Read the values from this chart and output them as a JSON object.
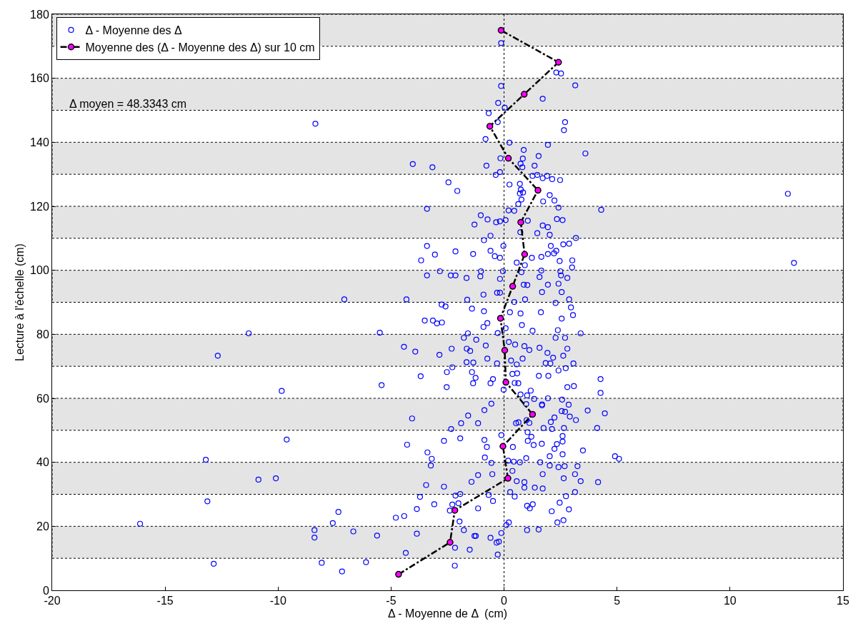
{
  "chart_data": {
    "type": "scatter",
    "xlabel": "Δ - Moyenne de Δ  (cm)",
    "ylabel": "Lecture à l'échelle (cm)",
    "xlim": [
      -20,
      15
    ],
    "xticks": [
      -20,
      -15,
      -10,
      -5,
      0,
      5,
      10,
      15
    ],
    "ylim": [
      0,
      180
    ],
    "yticks": [
      0,
      20,
      40,
      60,
      80,
      100,
      120,
      140,
      160,
      180
    ],
    "grid": false,
    "legend": "top left",
    "annotations": [
      "Δ moyen = 48.3343 cm"
    ],
    "ref_lines": [
      {
        "axis": "x",
        "value": 0,
        "color": "#000000",
        "line_style": "dotted"
      }
    ],
    "bands": [
      {
        "axis": "y",
        "from": 10,
        "to": 20,
        "color": "#e4e4e4"
      },
      {
        "axis": "y",
        "from": 30,
        "to": 40,
        "color": "#e4e4e4"
      },
      {
        "axis": "y",
        "from": 50,
        "to": 60,
        "color": "#e4e4e4"
      },
      {
        "axis": "y",
        "from": 70,
        "to": 80,
        "color": "#e4e4e4"
      },
      {
        "axis": "y",
        "from": 90,
        "to": 100,
        "color": "#e4e4e4"
      },
      {
        "axis": "y",
        "from": 110,
        "to": 120,
        "color": "#e4e4e4"
      },
      {
        "axis": "y",
        "from": 130,
        "to": 140,
        "color": "#e4e4e4"
      },
      {
        "axis": "y",
        "from": 150,
        "to": 160,
        "color": "#e4e4e4"
      },
      {
        "axis": "y",
        "from": 170,
        "to": 180,
        "color": "#e4e4e4"
      }
    ],
    "series": [
      {
        "name": "Δ - Moyenne des Δ",
        "color": "#0000ff",
        "marker": "circle",
        "x": [
          -0.13,
          2.31,
          2.52,
          -0.13,
          3.15,
          1.71,
          -0.26,
          0.03,
          -0.68,
          -0.28,
          2.7,
          2.65,
          -0.82,
          0.24,
          1.94,
          0.87,
          3.6,
          1.53,
          -4.04,
          -3.17,
          -0.16,
          0.83,
          0.73,
          0.81,
          -0.78,
          1.35,
          -0.18,
          -0.37,
          1.26,
          1.47,
          1.71,
          1.9,
          2.13,
          2.48,
          -2.46,
          -2.07,
          0.24,
          0.7,
          0.74,
          0.84,
          0.7,
          2.02,
          0.77,
          2.23,
          1.73,
          0.63,
          -3.41,
          2.41,
          4.3,
          -8.35,
          -7.07,
          -11.3,
          -5.5,
          -12.67,
          -9.84,
          -5.42,
          -9.62,
          -13.2,
          -10.87,
          -10.1,
          -13.13,
          -16.11,
          -7.33,
          -7.58,
          -8.39,
          -8.39,
          -6.67,
          -5.62,
          -12.85,
          -8.07,
          -6.11,
          -7.17,
          12.56,
          12.83,
          4.91,
          5.09,
          0.2,
          0.45,
          -1.03,
          -0.73,
          -0.35,
          -0.18,
          0.07,
          -1.31,
          1.05,
          2.34,
          2.59,
          1.71,
          1.94,
          0.72,
          1.47,
          2.02,
          -0.6,
          3.18,
          -0.89,
          -3.41,
          -0.03,
          2.07,
          2.62,
          2.88,
          -2.15,
          -3.06,
          -1.37,
          -0.6,
          -0.41,
          -0.18,
          1.94,
          2.31,
          2.21,
          -3.67,
          1.23,
          1.65,
          2.46,
          3.02,
          0.56,
          0.92,
          3.01,
          -2.84,
          -3.41,
          -2.36,
          -2.15,
          -1.66,
          -1.05,
          -1.02,
          -0.05,
          0.77,
          1.65,
          2.49,
          1.57,
          2.52,
          2.8,
          -0.18,
          0.87,
          1.03,
          1.94,
          2.41,
          -0.31,
          -0.18,
          1.68,
          2.55,
          -4.32,
          -1.63,
          -0.91,
          0.45,
          0.93,
          2.28,
          2.88,
          -2.76,
          -2.59,
          -1.42,
          -0.89,
          0.26,
          0.73,
          1.63,
          2.96,
          3.05,
          -3.51,
          -3.15,
          -2.97,
          -2.75,
          -0.74,
          -0.91,
          0.07,
          0.79,
          1.26,
          2.55,
          2.38,
          3.39,
          -1.6,
          -0.28,
          -1.78,
          -1.23,
          0.49,
          2.28,
          2.7,
          -4.43,
          -3.93,
          -2.32,
          -1.65,
          -1.5,
          -0.81,
          0.21,
          0.9,
          1.12,
          -2.86,
          -0.74,
          0.82,
          1.57,
          1.92,
          2.17,
          2.62,
          2.8,
          -1.66,
          -1.36,
          -0.31,
          0.31,
          0.56,
          1.84,
          2.05,
          3.07,
          -2.29,
          -2.53,
          -1.42,
          -1.26,
          -0.49,
          0.37,
          0.58,
          2.41,
          2.73,
          1.54,
          1.96,
          -3.69,
          -2.54,
          -1.37,
          -0.6,
          0.47,
          0.63,
          -0.02,
          0.73,
          1.02,
          1.18,
          1.33,
          1.94,
          2.8,
          3.09,
          4.27,
          4.27,
          2.57,
          1.68,
          0.98,
          -0.56,
          2.86,
          -4.07,
          -1.59,
          -0.87,
          -1.9,
          -1.15,
          -2.34,
          0.53,
          0.64,
          1.0,
          1.12,
          1.68,
          2.07,
          2.23,
          2.55,
          2.7,
          2.91,
          3.18,
          3.7,
          4.46,
          1.75,
          2.12,
          2.65,
          4.12,
          1.04,
          1.21,
          1.05,
          1.31,
          1.67,
          2.59,
          2.34,
          2.59,
          2.23,
          3.49,
          -4.29,
          -2.66,
          -1.94,
          -0.87,
          -0.76,
          -0.12,
          0.39,
          -3.39,
          -3.2,
          -3.24,
          -0.85,
          -0.56,
          0.18,
          0.43,
          0.7,
          0.98,
          1.6,
          2.02,
          2.02,
          2.59,
          2.41,
          2.68,
          3.25,
          1.71,
          2.64,
          3.14,
          3.39,
          4.16,
          -1.15,
          -0.52,
          0.37,
          -3.45,
          -2.66,
          -1.44,
          0.56,
          0.9,
          0.9,
          1.36,
          1.71,
          0.27,
          0.47,
          3.14,
          2.74,
          -3.72,
          -2.15,
          -1.94,
          -0.68,
          -0.49,
          -3.09,
          -3.86,
          -2.29,
          -2.02,
          -2.4,
          -1.15,
          -4.79,
          -4.42,
          -1.97,
          1.02,
          1.27,
          1.14,
          2.11,
          2.87,
          2.46,
          2.36,
          2.63,
          0.1,
          0.21,
          1.02,
          1.53,
          -3.86,
          -1.78,
          -1.31,
          -1.25,
          -0.6,
          -0.12,
          -0.33,
          -0.23,
          -2.17,
          -1.52,
          -4.35,
          -0.28,
          -2.18
        ],
        "values": [
          171.0,
          161.8,
          161.5,
          157.6,
          157.8,
          153.6,
          152.3,
          150.8,
          149.1,
          146.3,
          146.3,
          143.8,
          141.0,
          139.9,
          139.2,
          137.6,
          136.5,
          135.7,
          133.2,
          132.2,
          135.0,
          134.9,
          133.3,
          132.2,
          132.7,
          132.7,
          130.7,
          129.8,
          129.5,
          129.8,
          128.8,
          129.5,
          128.5,
          128.2,
          127.5,
          124.8,
          126.8,
          127.0,
          125.2,
          124.3,
          124.0,
          123.5,
          122.1,
          121.8,
          121.5,
          120.7,
          119.2,
          119.6,
          118.9,
          145.8,
          90.9,
          80.3,
          80.5,
          73.3,
          62.3,
          64.1,
          47.1,
          40.8,
          34.6,
          35.0,
          27.8,
          20.8,
          24.5,
          21.0,
          18.8,
          16.5,
          18.4,
          17.1,
          8.3,
          8.6,
          8.8,
          5.9,
          123.9,
          102.3,
          41.9,
          41.1,
          118.7,
          118.6,
          117.2,
          115.9,
          115.0,
          115.3,
          115.7,
          114.3,
          115.5,
          116.0,
          115.7,
          114.0,
          113.5,
          111.9,
          111.6,
          111.1,
          110.8,
          110.1,
          109.4,
          107.6,
          107.6,
          107.6,
          108.1,
          108.3,
          105.9,
          104.9,
          105.1,
          106.1,
          104.4,
          103.9,
          105.1,
          106.1,
          105.3,
          103.1,
          103.9,
          104.2,
          102.9,
          103.1,
          102.4,
          101.6,
          100.9,
          99.7,
          98.4,
          98.4,
          98.4,
          97.6,
          98.1,
          99.7,
          99.7,
          99.4,
          99.9,
          99.7,
          97.9,
          98.4,
          97.6,
          97.3,
          95.5,
          95.4,
          95.5,
          95.8,
          93.0,
          93.0,
          93.2,
          93.2,
          90.9,
          90.8,
          92.4,
          90.1,
          90.9,
          89.8,
          90.9,
          89.3,
          88.7,
          88.0,
          87.2,
          86.9,
          86.5,
          86.9,
          88.4,
          86.0,
          84.3,
          84.3,
          83.4,
          83.7,
          83.5,
          82.3,
          81.9,
          82.9,
          81.1,
          84.9,
          81.3,
          80.3,
          80.3,
          80.4,
          78.9,
          78.3,
          76.8,
          78.9,
          78.9,
          76.1,
          74.6,
          75.5,
          75.5,
          74.8,
          76.5,
          77.6,
          76.3,
          75.1,
          73.6,
          72.4,
          72.4,
          75.8,
          74.2,
          72.7,
          73.3,
          75.5,
          71.3,
          71.2,
          70.9,
          71.8,
          70.6,
          71.0,
          70.9,
          70.9,
          69.7,
          68.2,
          68.2,
          66.4,
          66.0,
          67.6,
          67.8,
          68.7,
          69.4,
          67.0,
          67.0,
          66.9,
          63.5,
          64.7,
          64.7,
          64.8,
          64.7,
          62.7,
          61.2,
          60.9,
          62.4,
          59.8,
          60.0,
          63.5,
          63.8,
          66.0,
          61.7,
          59.6,
          58.1,
          58.2,
          58.3,
          58.0,
          53.7,
          54.6,
          56.3,
          52.2,
          52.2,
          50.4,
          52.2,
          52.5,
          53.2,
          52.3,
          57.8,
          52.6,
          54.0,
          56.0,
          55.8,
          54.3,
          53.2,
          56.2,
          55.3,
          50.7,
          50.4,
          50.7,
          50.7,
          49.4,
          48.0,
          46.7,
          45.4,
          45.8,
          48.2,
          45.7,
          46.5,
          44.2,
          43.7,
          45.5,
          46.7,
          47.5,
          47.0,
          44.8,
          48.5,
          44.8,
          43.1,
          41.1,
          39.0,
          41.5,
          39.8,
          40.5,
          40.2,
          40.0,
          41.3,
          40.0,
          41.9,
          39.0,
          42.5,
          38.5,
          38.8,
          38.8,
          36.3,
          35.0,
          36.3,
          34.1,
          33.8,
          36.0,
          36.3,
          37.3,
          32.9,
          32.4,
          33.9,
          34.1,
          33.8,
          32.1,
          32.1,
          31.8,
          30.7,
          29.3,
          30.7,
          29.4,
          29.2,
          29.6,
          30.1,
          29.8,
          27.9,
          26.9,
          25.4,
          26.8,
          27.2,
          24.9,
          25.6,
          22.7,
          23.2,
          21.5,
          26.4,
          26.9,
          25.6,
          24.7,
          25.3,
          27.4,
          21.2,
          21.9,
          20.4,
          21.2,
          18.8,
          19.0,
          17.7,
          18.8,
          17.0,
          17.0,
          16.4,
          17.9,
          14.9,
          15.2,
          13.3,
          12.7,
          11.7,
          11.2,
          7.7
        ]
      },
      {
        "name": "Moyenne des (Δ - Moyenne des Δ) sur 10 cm",
        "type": "line",
        "color": "#000000",
        "marker": "circle",
        "line_style": "dashdot",
        "x": [
          -4.67,
          -2.39,
          -2.18,
          0.17,
          -0.05,
          1.26,
          0.08,
          0.03,
          -0.16,
          0.38,
          0.91,
          0.74,
          1.5,
          0.19,
          -0.63,
          0.89,
          2.41,
          -0.13
        ],
        "values": [
          5,
          15,
          25,
          35,
          45,
          55,
          65,
          75,
          85,
          95,
          105,
          115,
          125,
          135,
          145,
          155,
          165,
          175
        ]
      }
    ]
  }
}
